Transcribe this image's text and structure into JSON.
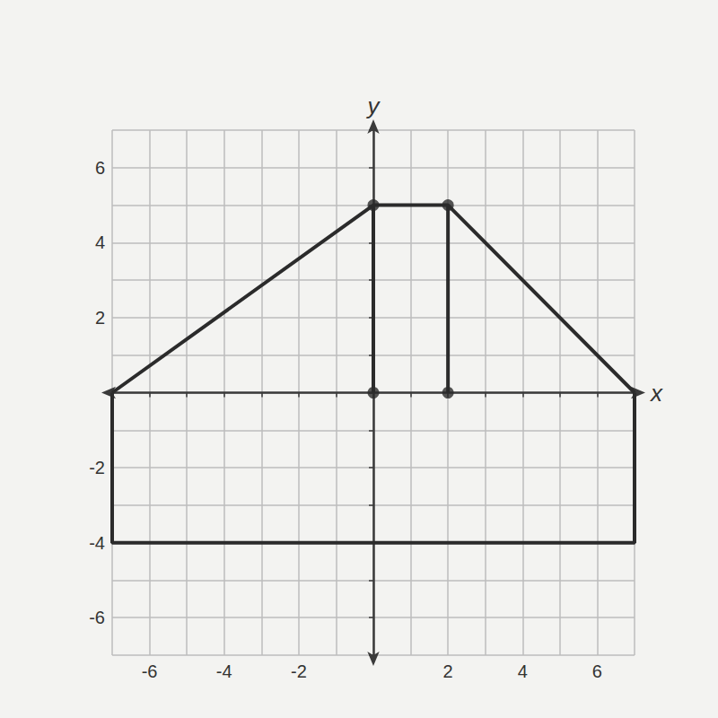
{
  "chart_data": {
    "type": "line",
    "xlabel": "x",
    "ylabel": "y",
    "xlim": [
      -7,
      7
    ],
    "ylim": [
      -7,
      7
    ],
    "xticks": [
      -6,
      -4,
      -2,
      2,
      4,
      6
    ],
    "yticks": [
      -6,
      -4,
      -2,
      2,
      4,
      6
    ],
    "grid": true,
    "color": "#2b2b2b",
    "series": [
      {
        "type": "line",
        "marker": "none",
        "x": [
          -7,
          0,
          2,
          7
        ],
        "values": [
          0,
          5,
          5,
          0
        ]
      },
      {
        "type": "line",
        "marker": "none",
        "x": [
          -7,
          -7,
          7,
          7
        ],
        "values": [
          0,
          -4,
          -4,
          0
        ]
      },
      {
        "type": "line",
        "marker": "none",
        "x": [
          0,
          0
        ],
        "values": [
          0,
          5
        ]
      },
      {
        "type": "line",
        "marker": "none",
        "x": [
          2,
          2
        ],
        "values": [
          0,
          5
        ]
      },
      {
        "type": "scatter",
        "marker": "circle",
        "x": [
          0,
          2,
          0,
          2
        ],
        "values": [
          5,
          5,
          0,
          0
        ]
      }
    ]
  }
}
